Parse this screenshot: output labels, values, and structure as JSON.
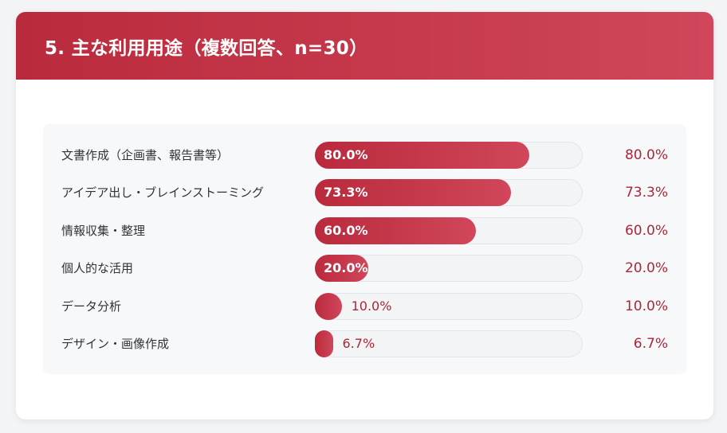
{
  "header": {
    "title": "5. 主な利用用途（複数回答、n=30）"
  },
  "colors": {
    "accent_start": "#b92a3c",
    "accent_end": "#d1465a",
    "value_text": "#a8283a",
    "track": "#f3f4f6"
  },
  "chart_data": {
    "type": "bar",
    "orientation": "horizontal",
    "title": "5. 主な利用用途（複数回答、n=30）",
    "xlim": [
      0,
      100
    ],
    "unit": "%",
    "categories": [
      "文書作成（企画書、報告書等）",
      "アイデア出し・ブレインストーミング",
      "情報収集・整理",
      "個人的な活用",
      "データ分析",
      "デザイン・画像作成"
    ],
    "values": [
      80.0,
      73.3,
      60.0,
      20.0,
      10.0,
      6.7
    ],
    "value_labels": [
      "80.0%",
      "73.3%",
      "60.0%",
      "20.0%",
      "10.0%",
      "6.7%"
    ]
  }
}
